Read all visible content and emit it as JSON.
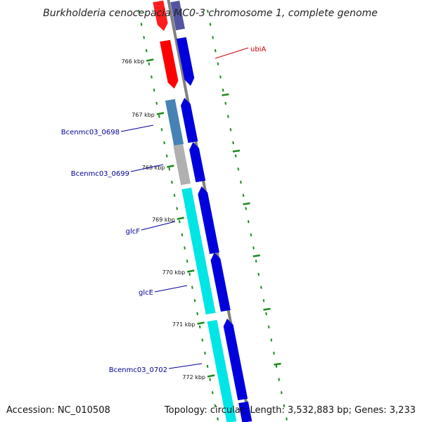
{
  "title": "Burkholderia cenocepacia MC0-3 chromosome 1, complete genome",
  "footer": {
    "accession": "Accession: NC_010508",
    "summary": "Topology: circular; Length: 3,532,883 bp; Genes: 3,233"
  },
  "colors": {
    "backbone": "#808080",
    "tick": "#1a8a1a",
    "gene_cds": "#0000dd",
    "gene_red": "#ff0000",
    "gene_steel": "#4682b4",
    "gene_gray": "#b0b0b0",
    "gene_cyan": "#00e5e5",
    "label_blue": "#000099",
    "label_red": "#cc0000"
  },
  "ticks": [
    {
      "kbp": 766,
      "label": "766 kbp"
    },
    {
      "kbp": 767,
      "label": "767 kbp"
    },
    {
      "kbp": 768,
      "label": "768 kbp"
    },
    {
      "kbp": 769,
      "label": "769 kbp"
    },
    {
      "kbp": 770,
      "label": "770 kbp"
    },
    {
      "kbp": 771,
      "label": "771 kbp"
    },
    {
      "kbp": 772,
      "label": "772 kbp"
    }
  ],
  "genes": [
    {
      "name": "ubiA",
      "kind": "red"
    },
    {
      "name": "Bcenmc03_0698",
      "kind": "steel"
    },
    {
      "name": "Bcenmc03_0699",
      "kind": "gray"
    },
    {
      "name": "glcF",
      "kind": "cyan"
    },
    {
      "name": "glcE",
      "kind": "cyan"
    },
    {
      "name": "Bcenmc03_0702",
      "kind": "cyan"
    }
  ]
}
